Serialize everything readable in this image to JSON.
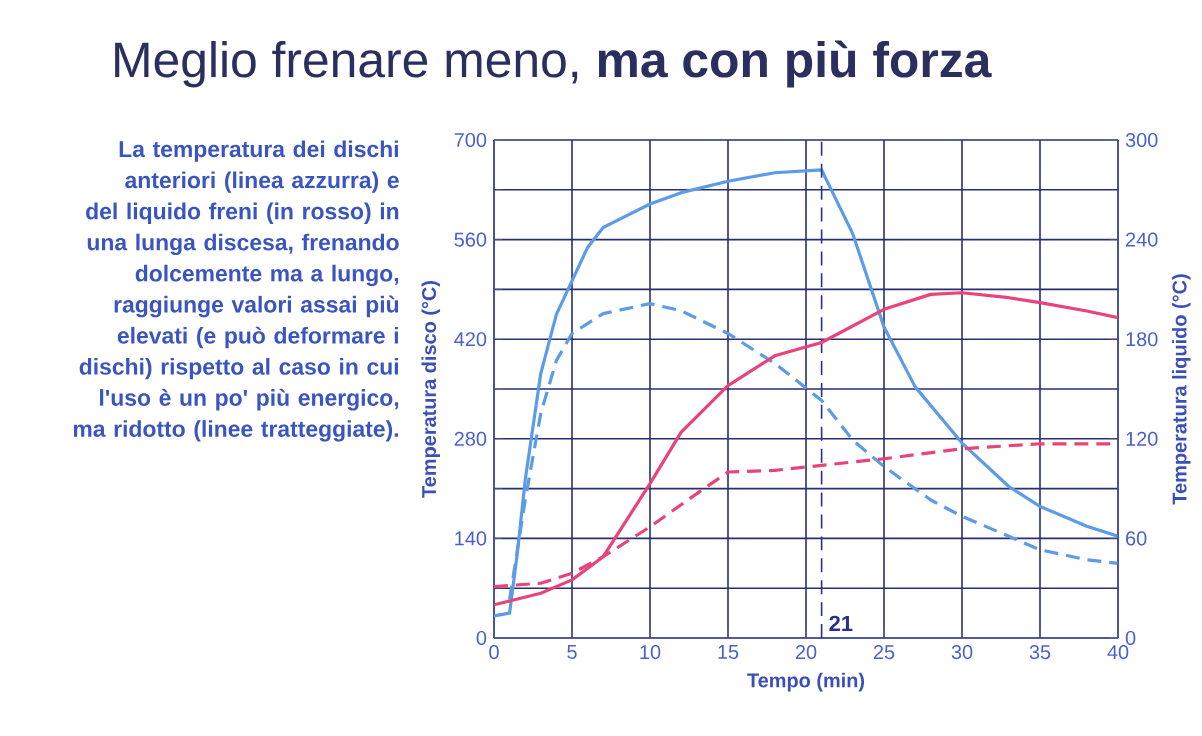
{
  "chart_data": {
    "type": "line",
    "title": "Meglio frenare meno, **ma con più forza**",
    "xlabel": "Tempo (min)",
    "ylabel": "Temperatura disco (°C)",
    "y2label": "Temperatura liquido (°C)",
    "annotations": [
      "La temperatura dei dischi anteriori (linea azzurra) e del liquido freni (in rosso) in una lunga discesa, frenando dolcemente ma a lungo, raggiunge valori assai più elevati (e può deformare i dischi) rispetto al caso in cui l'uso è un po' più energico, ma ridotto (linee tratteggiate)."
    ],
    "xlim": [
      0,
      40
    ],
    "xticks": [
      0,
      5,
      10,
      15,
      20,
      25,
      30,
      35,
      40
    ],
    "ylim": [
      0,
      700
    ],
    "yticks": [
      0,
      {
        "value": 70,
        "label": null
      },
      140,
      {
        "value": 210,
        "label": null
      },
      280,
      {
        "value": 350,
        "label": null
      },
      420,
      {
        "value": 490,
        "label": null
      },
      560,
      {
        "value": 630,
        "label": null
      },
      700
    ],
    "y2lim": [
      0,
      300
    ],
    "y2ticks": [
      0,
      60,
      120,
      180,
      240,
      300
    ],
    "grid": true,
    "ref_lines": [
      {
        "axis": "x",
        "value": 21,
        "label": "21",
        "color": "#2a2f8f",
        "line_style": "dashed"
      }
    ],
    "series": [
      {
        "color": "#5b9be8",
        "line_style": "solid",
        "x": [
          0,
          1,
          1.5,
          2,
          3,
          4,
          5,
          6,
          7,
          8,
          10,
          12,
          15,
          18,
          21,
          23,
          25,
          27,
          30,
          33,
          35,
          38,
          40
        ],
        "values": [
          31,
          35,
          120,
          222,
          372,
          455,
          502,
          549,
          577,
          588,
          610,
          626,
          642,
          654,
          658,
          568,
          437,
          353,
          274,
          213,
          185,
          157,
          143
        ]
      },
      {
        "color": "#5b9be8",
        "line_style": "dashed",
        "x": [
          1,
          2,
          3,
          4,
          5,
          7,
          10,
          12,
          15,
          18,
          21,
          23,
          25,
          28,
          30,
          33,
          35,
          38,
          40
        ],
        "values": [
          54,
          194,
          316,
          390,
          428,
          456,
          470,
          460,
          428,
          386,
          334,
          278,
          241,
          194,
          171,
          143,
          124,
          110,
          105
        ]
      },
      {
        "color": "#e8447a",
        "line_style": "solid",
        "axis": "y2",
        "x": [
          0,
          3,
          5,
          7,
          10,
          12,
          15,
          18,
          21,
          23,
          25,
          28,
          30,
          33,
          35,
          38,
          40
        ],
        "values": [
          20,
          27,
          35,
          49,
          93,
          124,
          152,
          170,
          178,
          188,
          198,
          207,
          208,
          205,
          202,
          197,
          193
        ]
      },
      {
        "color": "#e8447a",
        "line_style": "dashed",
        "axis": "y2",
        "x": [
          0,
          3,
          5,
          7,
          10,
          13,
          15,
          18,
          21,
          25,
          30,
          35,
          40
        ],
        "values": [
          31,
          33,
          39,
          49,
          67,
          87,
          100,
          101,
          104,
          108,
          114,
          117,
          117
        ]
      }
    ]
  }
}
